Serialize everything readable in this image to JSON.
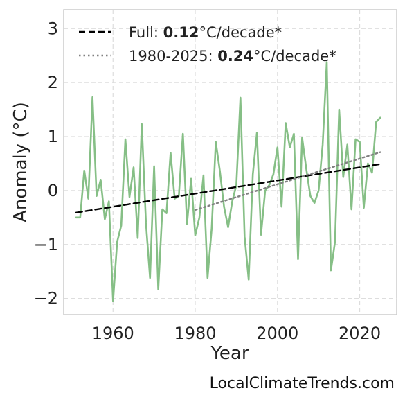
{
  "chart_data": {
    "type": "line",
    "xlabel": "Year",
    "ylabel": "Anomaly (°C)",
    "xlim": [
      1948,
      2029
    ],
    "ylim": [
      -2.3,
      3.35
    ],
    "x_ticks": [
      1960,
      1980,
      2000,
      2020
    ],
    "y_ticks": [
      -2,
      -1,
      0,
      1,
      2,
      3
    ],
    "y_tick_labels": [
      "−2",
      "−1",
      "0",
      "1",
      "2",
      "3"
    ],
    "grid": true,
    "legend_position": "top-left",
    "series": [
      {
        "style": "solid",
        "color": "#86bf86",
        "x": [
          1951,
          1952,
          1953,
          1954,
          1955,
          1956,
          1957,
          1958,
          1959,
          1960,
          1961,
          1962,
          1963,
          1964,
          1965,
          1966,
          1967,
          1968,
          1969,
          1970,
          1971,
          1972,
          1973,
          1974,
          1975,
          1976,
          1977,
          1978,
          1979,
          1980,
          1981,
          1982,
          1983,
          1984,
          1985,
          1986,
          1987,
          1988,
          1989,
          1990,
          1991,
          1992,
          1993,
          1994,
          1995,
          1996,
          1997,
          1998,
          1999,
          2000,
          2001,
          2002,
          2003,
          2004,
          2005,
          2006,
          2007,
          2008,
          2009,
          2010,
          2011,
          2012,
          2013,
          2014,
          2015,
          2016,
          2017,
          2018,
          2019,
          2020,
          2021,
          2022,
          2023,
          2024,
          2025
        ],
        "y": [
          -0.5,
          -0.5,
          0.37,
          -0.15,
          1.73,
          -0.1,
          0.2,
          -0.53,
          -0.2,
          -2.05,
          -0.95,
          -0.65,
          0.95,
          -0.12,
          0.43,
          -0.88,
          1.23,
          -0.6,
          -1.62,
          0.45,
          -1.83,
          -0.35,
          -0.42,
          0.7,
          -0.15,
          -0.1,
          1.05,
          -0.62,
          0.22,
          -0.83,
          -0.5,
          0.28,
          -1.62,
          -0.7,
          0.9,
          0.35,
          -0.3,
          -0.68,
          -0.2,
          0.1,
          1.72,
          -0.85,
          -1.65,
          0.3,
          1.07,
          -0.82,
          0.0,
          0.1,
          0.3,
          0.8,
          -0.3,
          1.25,
          0.8,
          1.05,
          -1.27,
          0.98,
          0.4,
          -0.1,
          -0.23,
          0.0,
          0.85,
          2.38,
          -1.48,
          -0.95,
          1.5,
          0.25,
          0.85,
          -0.35,
          0.95,
          0.9,
          -0.32,
          0.5,
          0.33,
          1.27,
          1.35
        ]
      },
      {
        "name": "Full: 0.12°C/decade*",
        "style": "dashed",
        "color": "#000000",
        "x": [
          1951,
          2025
        ],
        "y": [
          -0.41,
          0.49
        ]
      },
      {
        "name": "1980-2025: 0.24°C/decade*",
        "style": "dotted",
        "color": "#808080",
        "x": [
          1980,
          2025
        ],
        "y": [
          -0.36,
          0.71
        ]
      }
    ],
    "legend": [
      {
        "prefix": "Full: ",
        "value": "0.12",
        "suffix": "°C/decade*",
        "style": "dashed",
        "color": "#000000"
      },
      {
        "prefix": "1980-2025: ",
        "value": "0.24",
        "suffix": "°C/decade*",
        "style": "dotted",
        "color": "#808080"
      }
    ]
  },
  "watermark": "LocalClimateTrends.com"
}
